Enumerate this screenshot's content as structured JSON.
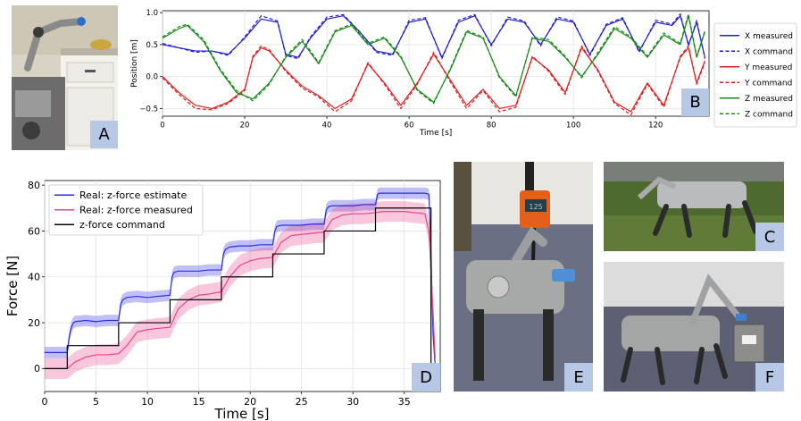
{
  "panels": {
    "A": "A",
    "B": "B",
    "C": "C",
    "D": "D",
    "E": "E",
    "F": "F"
  },
  "colors": {
    "x": "#1f1fd6",
    "y": "#e01b1b",
    "z": "#1a8a1a",
    "estimate": "#2d2de0",
    "measured": "#e8458a",
    "command": "#000000",
    "badge": "#b7c8e6"
  },
  "scale_display": "125",
  "chart_data": [
    {
      "type": "line",
      "title": "",
      "xlabel": "Time [s]",
      "ylabel": "Position [m]",
      "xlim": [
        0,
        133
      ],
      "ylim": [
        -0.62,
        1.03
      ],
      "xticks": [
        0,
        20,
        40,
        60,
        80,
        100,
        120
      ],
      "yticks": [
        -0.5,
        0.0,
        0.5,
        1.0
      ],
      "ytick_labels": [
        "−0.5",
        "0.0",
        "0.5",
        "1.0"
      ],
      "grid": true,
      "legend": "right-outside",
      "series": [
        {
          "name": "X measured",
          "color": "#1f1fd6",
          "dash": false,
          "x": [
            0,
            4,
            8,
            12,
            16,
            20,
            24,
            28,
            30,
            33,
            36,
            40,
            44,
            48,
            52,
            56,
            60,
            64,
            68,
            72,
            76,
            80,
            84,
            88,
            92,
            96,
            100,
            104,
            108,
            112,
            116,
            120,
            124,
            126,
            128,
            130,
            132
          ],
          "y": [
            0.5,
            0.45,
            0.4,
            0.4,
            0.35,
            0.6,
            0.9,
            0.85,
            0.35,
            0.3,
            0.6,
            0.9,
            0.95,
            0.7,
            0.4,
            0.35,
            0.85,
            0.9,
            0.3,
            0.85,
            0.95,
            0.5,
            0.9,
            0.85,
            0.5,
            0.9,
            0.85,
            0.35,
            0.8,
            0.9,
            0.4,
            0.85,
            0.8,
            0.95,
            0.5,
            0.85,
            0.3
          ]
        },
        {
          "name": "X command",
          "color": "#1f1fd6",
          "dash": true,
          "x": [
            0,
            4,
            8,
            12,
            16,
            20,
            24,
            28,
            30,
            33,
            36,
            40,
            44,
            48,
            52,
            56,
            60,
            64,
            68,
            72,
            76,
            80,
            84,
            88,
            92,
            96,
            100,
            104,
            108,
            112,
            116,
            120,
            124,
            126,
            128,
            130,
            132
          ],
          "y": [
            0.52,
            0.45,
            0.38,
            0.4,
            0.33,
            0.62,
            0.95,
            0.87,
            0.33,
            0.28,
            0.62,
            0.93,
            0.97,
            0.7,
            0.38,
            0.33,
            0.88,
            0.92,
            0.28,
            0.88,
            0.97,
            0.48,
            0.93,
            0.87,
            0.48,
            0.93,
            0.87,
            0.33,
            0.82,
            0.92,
            0.38,
            0.88,
            0.82,
            0.98,
            0.48,
            0.88,
            0.28
          ]
        },
        {
          "name": "Y measured",
          "color": "#e01b1b",
          "dash": false,
          "x": [
            0,
            4,
            8,
            12,
            16,
            20,
            22,
            24,
            26,
            30,
            34,
            38,
            42,
            46,
            50,
            54,
            58,
            62,
            66,
            70,
            74,
            78,
            82,
            86,
            90,
            94,
            98,
            102,
            106,
            110,
            114,
            118,
            122,
            126,
            128,
            130,
            132
          ],
          "y": [
            0.0,
            -0.25,
            -0.45,
            -0.5,
            -0.4,
            -0.2,
            0.3,
            0.45,
            0.4,
            0.1,
            -0.15,
            -0.3,
            -0.5,
            -0.35,
            0.2,
            -0.1,
            -0.45,
            -0.1,
            0.35,
            -0.05,
            -0.45,
            -0.2,
            -0.5,
            -0.45,
            0.3,
            0.1,
            -0.25,
            0.45,
            0.1,
            -0.4,
            -0.55,
            -0.1,
            -0.45,
            0.3,
            0.45,
            -0.1,
            0.25
          ]
        },
        {
          "name": "Y command",
          "color": "#e01b1b",
          "dash": true,
          "x": [
            0,
            4,
            8,
            12,
            16,
            20,
            22,
            24,
            26,
            30,
            34,
            38,
            42,
            46,
            50,
            54,
            58,
            62,
            66,
            70,
            74,
            78,
            82,
            86,
            90,
            94,
            98,
            102,
            106,
            110,
            114,
            118,
            122,
            126,
            128,
            130,
            132
          ],
          "y": [
            -0.02,
            -0.28,
            -0.5,
            -0.52,
            -0.42,
            -0.22,
            0.32,
            0.48,
            0.42,
            0.08,
            -0.18,
            -0.32,
            -0.55,
            -0.38,
            0.22,
            -0.12,
            -0.5,
            -0.12,
            0.38,
            -0.08,
            -0.5,
            -0.22,
            -0.55,
            -0.48,
            0.32,
            0.08,
            -0.28,
            0.48,
            0.08,
            -0.42,
            -0.6,
            -0.12,
            -0.48,
            0.32,
            0.48,
            -0.12,
            0.22
          ]
        },
        {
          "name": "Z measured",
          "color": "#1a8a1a",
          "dash": false,
          "x": [
            0,
            4,
            6,
            10,
            14,
            18,
            22,
            26,
            30,
            34,
            38,
            42,
            46,
            50,
            54,
            58,
            62,
            66,
            70,
            74,
            78,
            82,
            86,
            90,
            94,
            98,
            102,
            106,
            110,
            114,
            118,
            122,
            126,
            128,
            130,
            132
          ],
          "y": [
            0.6,
            0.75,
            0.8,
            0.55,
            0.1,
            -0.25,
            -0.35,
            -0.1,
            0.3,
            0.55,
            0.2,
            0.7,
            0.8,
            0.5,
            0.6,
            0.3,
            -0.2,
            -0.4,
            0.1,
            0.7,
            0.6,
            0.0,
            -0.3,
            0.6,
            0.55,
            0.3,
            0.0,
            0.35,
            0.75,
            0.6,
            0.3,
            0.65,
            0.5,
            0.95,
            0.3,
            0.7
          ]
        },
        {
          "name": "Z command",
          "color": "#1a8a1a",
          "dash": true,
          "x": [
            0,
            4,
            6,
            10,
            14,
            18,
            22,
            26,
            30,
            34,
            38,
            42,
            46,
            50,
            54,
            58,
            62,
            66,
            70,
            74,
            78,
            82,
            86,
            90,
            94,
            98,
            102,
            106,
            110,
            114,
            118,
            122,
            126,
            128,
            130,
            132
          ],
          "y": [
            0.62,
            0.78,
            0.82,
            0.58,
            0.12,
            -0.22,
            -0.38,
            -0.12,
            0.32,
            0.58,
            0.22,
            0.72,
            0.82,
            0.52,
            0.62,
            0.32,
            -0.22,
            -0.42,
            0.12,
            0.72,
            0.62,
            -0.02,
            -0.32,
            0.62,
            0.58,
            0.32,
            -0.02,
            0.38,
            0.78,
            0.62,
            0.32,
            0.68,
            0.52,
            0.98,
            0.32,
            0.72
          ]
        }
      ]
    },
    {
      "type": "line",
      "title": "",
      "xlabel": "Time [s]",
      "ylabel": "Force [N]",
      "xlim": [
        0,
        38.5
      ],
      "ylim": [
        -10,
        82
      ],
      "xticks": [
        0,
        5,
        10,
        15,
        20,
        25,
        30,
        35
      ],
      "yticks": [
        0,
        20,
        40,
        60,
        80
      ],
      "grid": true,
      "legend": "top-left",
      "series": [
        {
          "name": "Real: z-force estimate",
          "color": "#2d2de0",
          "band": 2.5,
          "x": [
            0,
            2.2,
            2.4,
            2.6,
            2.8,
            3,
            4,
            5,
            6,
            7.2,
            7.4,
            7.6,
            8,
            9,
            10,
            11,
            12.2,
            12.4,
            12.6,
            13,
            14,
            15,
            16,
            17.2,
            17.4,
            17.6,
            18,
            19,
            20,
            21,
            22.2,
            22.4,
            22.6,
            23,
            24,
            25,
            26,
            27.2,
            27.4,
            27.6,
            28,
            29,
            30,
            31,
            32.2,
            32.4,
            32.6,
            33,
            34,
            35,
            36,
            37,
            37.4,
            37.6,
            37.8,
            38
          ],
          "y": [
            7,
            7,
            14,
            18,
            20,
            20.5,
            21,
            20.5,
            21,
            21,
            28,
            30,
            31,
            31.5,
            31,
            31.5,
            32,
            40,
            42,
            42.5,
            42.5,
            42.5,
            43,
            43,
            50,
            52,
            53,
            53.5,
            53.5,
            54,
            54,
            60,
            62,
            62.5,
            62.5,
            62.5,
            63,
            63,
            69,
            70.5,
            71,
            71,
            71,
            71.5,
            71.5,
            76,
            76.5,
            76.5,
            76.5,
            76.5,
            76.5,
            76.5,
            76,
            50,
            15,
            2
          ]
        },
        {
          "name": "Real: z-force measured",
          "color": "#e8458a",
          "band": 4.5,
          "x": [
            0,
            2.2,
            3,
            4,
            5,
            6,
            7.2,
            8,
            9,
            10,
            11,
            12.2,
            13,
            14,
            15,
            16,
            17.2,
            18,
            19,
            20,
            21,
            22.2,
            23,
            24,
            25,
            26,
            27.2,
            28,
            29,
            30,
            31,
            32.2,
            33,
            34,
            35,
            36,
            37,
            37.4,
            37.8,
            38
          ],
          "y": [
            0,
            0,
            3,
            5,
            6,
            6,
            6.5,
            10,
            16,
            17,
            17.5,
            18,
            26,
            30,
            32,
            32.5,
            33.5,
            40,
            45,
            47,
            48,
            48.5,
            55,
            58,
            58.5,
            59,
            59.5,
            65,
            67,
            67.5,
            67.5,
            68,
            68.5,
            68.5,
            68.5,
            68,
            67.5,
            60,
            25,
            5
          ]
        },
        {
          "name": "z-force command",
          "color": "#000000",
          "band": 0,
          "x": [
            0,
            2.2,
            2.2,
            7.2,
            7.2,
            12.2,
            12.2,
            17.2,
            17.2,
            22.2,
            22.2,
            27.2,
            27.2,
            32.2,
            32.2,
            37.6,
            37.6,
            38
          ],
          "y": [
            0,
            0,
            10,
            10,
            20,
            20,
            30,
            30,
            40,
            40,
            50,
            50,
            60,
            60,
            70,
            70,
            0,
            0
          ]
        }
      ]
    }
  ]
}
